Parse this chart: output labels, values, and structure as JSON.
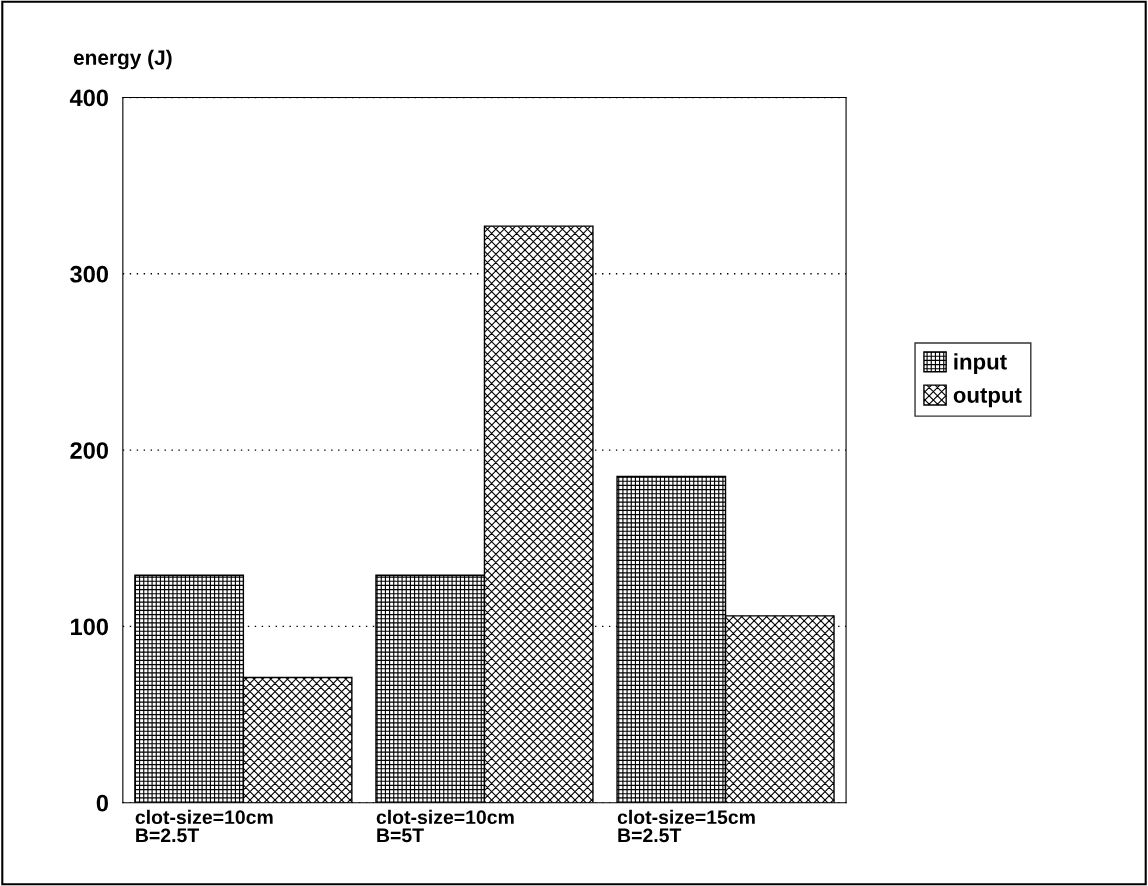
{
  "chart_data": {
    "type": "bar",
    "ylabel": "energy (J)",
    "categories": [
      "clot-size=10cm\nB=2.5T",
      "clot-size=10cm\nB=5T",
      "clot-size=15cm\nB=2.5T"
    ],
    "series": [
      {
        "name": "input",
        "color": "#000000",
        "values": [
          129,
          129,
          185
        ]
      },
      {
        "name": "output",
        "color": "#000000",
        "values": [
          71,
          327,
          106
        ]
      }
    ],
    "ylim": [
      0,
      400
    ],
    "yticks": [
      0,
      100,
      200,
      300,
      400
    ],
    "grid": "y",
    "legend": "right"
  }
}
